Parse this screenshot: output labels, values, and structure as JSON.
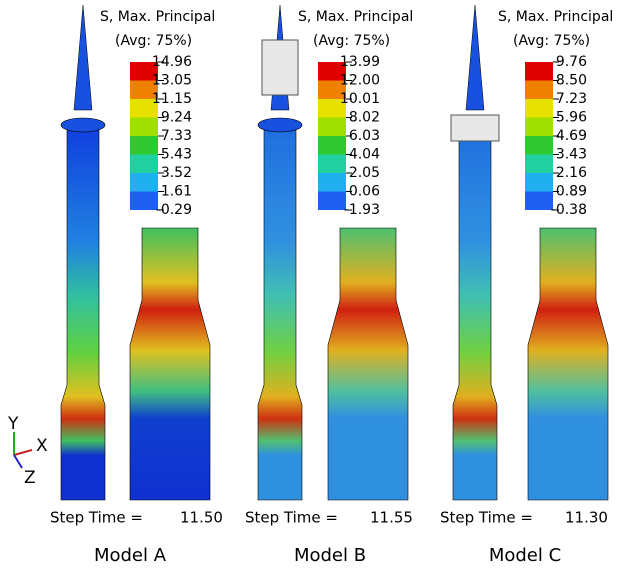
{
  "panels": [
    {
      "legend_title": "S, Max. Principal",
      "legend_subtitle": "(Avg: 75%)",
      "legend_values": [
        "14.96",
        "13.05",
        "11.15",
        "9.24",
        "7.33",
        "5.43",
        "3.52",
        "1.61",
        "-0.29"
      ],
      "step_label": "Step Time =",
      "step_value": "11.50",
      "model": "Model A"
    },
    {
      "legend_title": "S, Max. Principal",
      "legend_subtitle": "(Avg: 75%)",
      "legend_values": [
        "13.99",
        "12.00",
        "10.01",
        "8.02",
        "6.03",
        "4.04",
        "2.05",
        "0.06",
        "-1.93"
      ],
      "step_label": "Step Time =",
      "step_value": "11.55",
      "model": "Model B"
    },
    {
      "legend_title": "S, Max. Principal",
      "legend_subtitle": "(Avg: 75%)",
      "legend_values": [
        "9.76",
        "8.50",
        "7.23",
        "5.96",
        "4.69",
        "3.43",
        "2.16",
        "0.89",
        "-0.38"
      ],
      "step_label": "Step Time =",
      "step_value": "11.30",
      "model": "Model C"
    }
  ],
  "triad": {
    "y": "Y",
    "x": "X",
    "z": "Z"
  }
}
